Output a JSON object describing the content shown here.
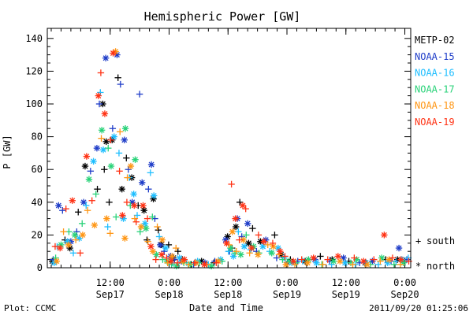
{
  "chart_data": {
    "type": "scatter",
    "title": "Hemispheric Power [GW]",
    "xlabel": "Date and Time",
    "ylabel": "P [GW]",
    "ylim": [
      0,
      145
    ],
    "y_ticks": [
      0,
      20,
      40,
      60,
      80,
      100,
      120,
      140
    ],
    "x_unit": "hours since 2011-09-16 23:12",
    "xlim": [
      0,
      74
    ],
    "x_ticks": [
      {
        "h": 12.8,
        "time": "12:00",
        "date": "Sep17"
      },
      {
        "h": 24.8,
        "time": "0:00",
        "date": "Sep18"
      },
      {
        "h": 36.8,
        "time": "12:00",
        "date": "Sep18"
      },
      {
        "h": 48.8,
        "time": "0:00",
        "date": "Sep19"
      },
      {
        "h": 60.8,
        "time": "12:00",
        "date": "Sep19"
      },
      {
        "h": 72.8,
        "time": "0:00",
        "date": "Sep20"
      }
    ],
    "legend_placement": "right",
    "series": [
      {
        "name": "METP-02",
        "color": "#000000",
        "points": [
          [
            1.0,
            4
          ],
          [
            3.6,
            17
          ],
          [
            4.6,
            12
          ],
          [
            6.3,
            34
          ],
          [
            7.7,
            62
          ],
          [
            10.2,
            48
          ],
          [
            11.3,
            100
          ],
          [
            11.6,
            60
          ],
          [
            12.0,
            77
          ],
          [
            12.6,
            40
          ],
          [
            13.2,
            78
          ],
          [
            14.4,
            116
          ],
          [
            15.2,
            48
          ],
          [
            16.1,
            67
          ],
          [
            17.2,
            55
          ],
          [
            18.5,
            38
          ],
          [
            19.7,
            35
          ],
          [
            20.3,
            17
          ],
          [
            21.6,
            42
          ],
          [
            22.6,
            23
          ],
          [
            23.2,
            14
          ],
          [
            24.7,
            14
          ],
          [
            25.7,
            6
          ],
          [
            26.6,
            10
          ],
          [
            27.5,
            5
          ],
          [
            29.3,
            2
          ],
          [
            31.4,
            4
          ],
          [
            33.9,
            3
          ],
          [
            36.7,
            19
          ],
          [
            37.6,
            12
          ],
          [
            38.4,
            25
          ],
          [
            39.2,
            40
          ],
          [
            41.0,
            15
          ],
          [
            41.8,
            24
          ],
          [
            43.4,
            16
          ],
          [
            46.3,
            20
          ],
          [
            47.6,
            8
          ],
          [
            49.5,
            5
          ],
          [
            52.5,
            4
          ],
          [
            55.6,
            7
          ],
          [
            58.0,
            5
          ],
          [
            61.4,
            4
          ],
          [
            64.7,
            3
          ],
          [
            68.9,
            5
          ],
          [
            71.3,
            5
          ],
          [
            72.8,
            4
          ]
        ]
      },
      {
        "name": "NOAA-15",
        "color": "#1e3cc8",
        "points": [
          [
            1.2,
            5
          ],
          [
            2.3,
            38
          ],
          [
            3.1,
            35
          ],
          [
            4.8,
            16
          ],
          [
            6.0,
            22
          ],
          [
            7.4,
            40
          ],
          [
            8.8,
            59
          ],
          [
            10.1,
            73
          ],
          [
            10.6,
            100
          ],
          [
            11.9,
            128
          ],
          [
            13.3,
            85
          ],
          [
            14.2,
            130
          ],
          [
            14.9,
            112
          ],
          [
            15.7,
            78
          ],
          [
            16.5,
            60
          ],
          [
            17.3,
            40
          ],
          [
            18.8,
            106
          ],
          [
            19.3,
            52
          ],
          [
            20.6,
            48
          ],
          [
            21.2,
            63
          ],
          [
            21.9,
            30
          ],
          [
            23.0,
            14
          ],
          [
            23.8,
            10
          ],
          [
            25.1,
            7
          ],
          [
            25.9,
            5
          ],
          [
            27.3,
            4
          ],
          [
            29.8,
            2
          ],
          [
            32.1,
            3
          ],
          [
            34.1,
            4
          ],
          [
            36.3,
            17
          ],
          [
            37.1,
            10
          ],
          [
            38.7,
            30
          ],
          [
            39.6,
            19
          ],
          [
            40.8,
            27
          ],
          [
            42.6,
            10
          ],
          [
            44.5,
            17
          ],
          [
            46.7,
            6
          ],
          [
            48.9,
            3
          ],
          [
            51.0,
            4
          ],
          [
            54.5,
            5
          ],
          [
            57.5,
            4
          ],
          [
            60.3,
            6
          ],
          [
            63.6,
            3
          ],
          [
            66.2,
            4
          ],
          [
            70.0,
            4
          ],
          [
            71.6,
            12
          ],
          [
            73.2,
            5
          ]
        ]
      },
      {
        "name": "NOAA-16",
        "color": "#1ebeff",
        "points": [
          [
            1.4,
            3
          ],
          [
            2.0,
            13
          ],
          [
            4.1,
            16
          ],
          [
            5.3,
            9
          ],
          [
            6.5,
            18
          ],
          [
            7.9,
            38
          ],
          [
            9.4,
            65
          ],
          [
            10.8,
            107
          ],
          [
            11.4,
            72
          ],
          [
            12.3,
            25
          ],
          [
            13.6,
            80
          ],
          [
            14.6,
            70
          ],
          [
            15.5,
            30
          ],
          [
            16.7,
            55
          ],
          [
            17.6,
            45
          ],
          [
            18.3,
            32
          ],
          [
            19.9,
            27
          ],
          [
            21.0,
            58
          ],
          [
            21.7,
            44
          ],
          [
            22.8,
            19
          ],
          [
            24.1,
            12
          ],
          [
            25.5,
            3
          ],
          [
            26.9,
            6
          ],
          [
            28.4,
            3
          ],
          [
            30.6,
            4
          ],
          [
            32.8,
            2
          ],
          [
            35.3,
            5
          ],
          [
            36.9,
            10
          ],
          [
            37.9,
            7
          ],
          [
            38.9,
            22
          ],
          [
            40.1,
            13
          ],
          [
            41.4,
            11
          ],
          [
            43.9,
            13
          ],
          [
            45.3,
            10
          ],
          [
            47.0,
            12
          ],
          [
            48.2,
            6
          ],
          [
            49.8,
            3
          ],
          [
            52.0,
            4
          ],
          [
            54.8,
            3
          ],
          [
            57.9,
            2
          ],
          [
            60.6,
            3
          ],
          [
            62.7,
            2
          ],
          [
            64.9,
            3
          ],
          [
            67.4,
            2
          ],
          [
            69.3,
            3
          ],
          [
            71.0,
            4
          ],
          [
            72.2,
            5
          ],
          [
            73.5,
            6
          ]
        ]
      },
      {
        "name": "NOAA-17",
        "color": "#28d278",
        "points": [
          [
            1.7,
            6
          ],
          [
            2.8,
            14
          ],
          [
            4.4,
            22
          ],
          [
            5.6,
            20
          ],
          [
            7.1,
            27
          ],
          [
            8.5,
            54
          ],
          [
            9.9,
            45
          ],
          [
            11.1,
            84
          ],
          [
            12.4,
            73
          ],
          [
            13.0,
            62
          ],
          [
            14.0,
            31
          ],
          [
            15.9,
            85
          ],
          [
            16.9,
            38
          ],
          [
            17.9,
            66
          ],
          [
            18.9,
            22
          ],
          [
            20.1,
            24
          ],
          [
            21.4,
            31
          ],
          [
            22.2,
            8
          ],
          [
            23.5,
            5
          ],
          [
            24.4,
            4
          ],
          [
            25.3,
            2
          ],
          [
            26.3,
            1
          ],
          [
            27.8,
            3
          ],
          [
            29.1,
            2
          ],
          [
            31.0,
            3
          ],
          [
            33.4,
            1
          ],
          [
            35.6,
            4
          ],
          [
            37.3,
            12
          ],
          [
            38.2,
            9
          ],
          [
            39.4,
            8
          ],
          [
            40.5,
            20
          ],
          [
            42.0,
            13
          ],
          [
            43.1,
            9
          ],
          [
            45.7,
            9
          ],
          [
            47.9,
            5
          ],
          [
            49.2,
            4
          ],
          [
            50.7,
            3
          ],
          [
            53.2,
            5
          ],
          [
            55.9,
            2
          ],
          [
            58.3,
            4
          ],
          [
            61.8,
            3
          ],
          [
            63.0,
            5
          ],
          [
            65.8,
            2
          ],
          [
            68.1,
            6
          ],
          [
            70.6,
            2
          ],
          [
            72.5,
            3
          ]
        ]
      },
      {
        "name": "NOAA-18",
        "color": "#ff9614",
        "points": [
          [
            1.9,
            4
          ],
          [
            3.3,
            22
          ],
          [
            4.3,
            14
          ],
          [
            5.8,
            17
          ],
          [
            7.2,
            20
          ],
          [
            8.2,
            35
          ],
          [
            9.6,
            26
          ],
          [
            11.0,
            79
          ],
          [
            12.1,
            30
          ],
          [
            12.8,
            21
          ],
          [
            13.9,
            132
          ],
          [
            14.8,
            83
          ],
          [
            15.8,
            18
          ],
          [
            16.3,
            55
          ],
          [
            17.0,
            62
          ],
          [
            17.8,
            30
          ],
          [
            19.1,
            25
          ],
          [
            20.5,
            16
          ],
          [
            21.5,
            10
          ],
          [
            22.4,
            25
          ],
          [
            23.4,
            17
          ],
          [
            24.5,
            3
          ],
          [
            25.4,
            7
          ],
          [
            26.2,
            12
          ],
          [
            27.6,
            4
          ],
          [
            28.8,
            2
          ],
          [
            30.3,
            3
          ],
          [
            32.5,
            2
          ],
          [
            34.8,
            4
          ],
          [
            37.0,
            14
          ],
          [
            37.7,
            22
          ],
          [
            38.5,
            10
          ],
          [
            39.9,
            17
          ],
          [
            41.2,
            9
          ],
          [
            42.9,
            8
          ],
          [
            44.9,
            14
          ],
          [
            46.0,
            13
          ],
          [
            47.2,
            8
          ],
          [
            48.6,
            2
          ],
          [
            50.4,
            2
          ],
          [
            53.0,
            3
          ],
          [
            56.1,
            2
          ],
          [
            59.6,
            4
          ],
          [
            62.2,
            2
          ],
          [
            65.1,
            2
          ],
          [
            67.8,
            4
          ],
          [
            69.6,
            5
          ],
          [
            71.9,
            2
          ]
        ]
      },
      {
        "name": "NOAA-19",
        "color": "#ff3214",
        "points": [
          [
            1.6,
            13
          ],
          [
            2.6,
            12
          ],
          [
            3.8,
            36
          ],
          [
            5.1,
            41
          ],
          [
            6.7,
            9
          ],
          [
            8.0,
            68
          ],
          [
            9.1,
            41
          ],
          [
            10.4,
            105
          ],
          [
            10.9,
            119
          ],
          [
            11.7,
            94
          ],
          [
            12.9,
            78
          ],
          [
            13.4,
            131
          ],
          [
            14.7,
            59
          ],
          [
            15.3,
            32
          ],
          [
            16.2,
            40
          ],
          [
            17.7,
            38
          ],
          [
            18.1,
            28
          ],
          [
            19.5,
            38
          ],
          [
            20.4,
            30
          ],
          [
            21.1,
            13
          ],
          [
            22.1,
            5
          ],
          [
            23.3,
            8
          ],
          [
            24.3,
            6
          ],
          [
            25.2,
            4
          ],
          [
            26.5,
            3
          ],
          [
            27.9,
            5
          ],
          [
            30.0,
            3
          ],
          [
            32.0,
            2
          ],
          [
            34.4,
            3
          ],
          [
            36.5,
            15
          ],
          [
            37.5,
            51
          ],
          [
            38.3,
            30
          ],
          [
            39.1,
            17
          ],
          [
            39.8,
            38
          ],
          [
            40.4,
            36
          ],
          [
            41.6,
            12
          ],
          [
            43.0,
            20
          ],
          [
            44.1,
            16
          ],
          [
            45.9,
            15
          ],
          [
            47.4,
            10
          ],
          [
            48.4,
            7
          ],
          [
            50.1,
            4
          ],
          [
            51.8,
            5
          ],
          [
            54.2,
            6
          ],
          [
            57.1,
            5
          ],
          [
            59.2,
            7
          ],
          [
            62.5,
            6
          ],
          [
            64.4,
            4
          ],
          [
            66.5,
            5
          ],
          [
            68.6,
            20
          ],
          [
            70.3,
            6
          ],
          [
            72.0,
            5
          ],
          [
            73.6,
            4
          ]
        ]
      }
    ]
  },
  "legend": {
    "entries": [
      "METP-02",
      "NOAA-15",
      "NOAA-16",
      "NOAA-17",
      "NOAA-18",
      "NOAA-19"
    ],
    "symbols": [
      {
        "glyph": "+",
        "label": "south"
      },
      {
        "glyph": "*",
        "label": "north"
      }
    ]
  },
  "footer": {
    "left": "Plot: CCMC",
    "right": "2011/09/20 01:25:06"
  }
}
